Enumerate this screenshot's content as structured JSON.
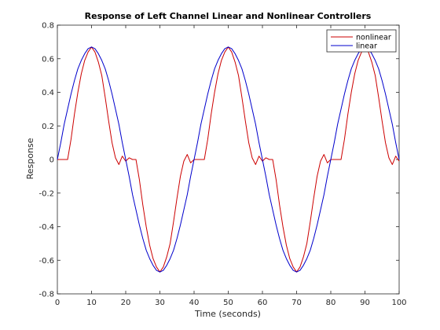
{
  "chart_data": {
    "type": "line",
    "title": "Response of Left Channel Linear and Nonlinear Controllers",
    "xlabel": "Time (seconds)",
    "ylabel": "Response",
    "xlim": [
      0,
      100
    ],
    "ylim": [
      -0.8,
      0.8
    ],
    "xticks": [
      0,
      10,
      20,
      30,
      40,
      50,
      60,
      70,
      80,
      90,
      100
    ],
    "yticks": [
      -0.8,
      -0.6,
      -0.4,
      -0.2,
      0,
      0.2,
      0.4,
      0.6,
      0.8
    ],
    "grid": false,
    "legend_position": "top-right",
    "series": [
      {
        "name": "nonlinear",
        "color": "#cc0000",
        "x": [
          0,
          3,
          4,
          5,
          6,
          7,
          8,
          9,
          10,
          11,
          12,
          13,
          14,
          15,
          16,
          17,
          18,
          19,
          20,
          21,
          22,
          23,
          24,
          25,
          26,
          27,
          28,
          29,
          30,
          31,
          32,
          33,
          34,
          35,
          36,
          37,
          38,
          39,
          40,
          43,
          44,
          45,
          46,
          47,
          48,
          49,
          50,
          51,
          52,
          53,
          54,
          55,
          56,
          57,
          58,
          59,
          60,
          61,
          62,
          63,
          64,
          65,
          66,
          67,
          68,
          69,
          70,
          71,
          72,
          73,
          74,
          75,
          76,
          77,
          78,
          79,
          80,
          83,
          84,
          85,
          86,
          87,
          88,
          89,
          90,
          91,
          92,
          93,
          94,
          95,
          96,
          97,
          98,
          99,
          100
        ],
        "y": [
          0,
          0,
          0.12,
          0.27,
          0.4,
          0.51,
          0.59,
          0.64,
          0.67,
          0.64,
          0.58,
          0.5,
          0.37,
          0.23,
          0.1,
          0.01,
          -0.03,
          0.02,
          -0.01,
          0.01,
          0,
          0,
          -0.12,
          -0.27,
          -0.4,
          -0.51,
          -0.59,
          -0.64,
          -0.67,
          -0.64,
          -0.58,
          -0.5,
          -0.37,
          -0.23,
          -0.1,
          -0.01,
          0.03,
          -0.02,
          0,
          0,
          0.12,
          0.27,
          0.4,
          0.51,
          0.59,
          0.64,
          0.67,
          0.64,
          0.58,
          0.5,
          0.37,
          0.23,
          0.1,
          0.01,
          -0.03,
          0.02,
          -0.01,
          0.01,
          0,
          0,
          -0.12,
          -0.27,
          -0.4,
          -0.51,
          -0.59,
          -0.64,
          -0.67,
          -0.64,
          -0.58,
          -0.5,
          -0.37,
          -0.23,
          -0.1,
          -0.01,
          0.03,
          -0.02,
          0,
          0,
          0.12,
          0.27,
          0.4,
          0.51,
          0.59,
          0.64,
          0.67,
          0.64,
          0.58,
          0.5,
          0.37,
          0.23,
          0.1,
          0.01,
          -0.03,
          0.02,
          -0.01
        ]
      },
      {
        "name": "linear",
        "color": "#0000cc",
        "x": [
          0,
          1,
          2,
          3,
          4,
          5,
          6,
          7,
          8,
          9,
          10,
          11,
          12,
          13,
          14,
          15,
          16,
          17,
          18,
          19,
          20,
          21,
          22,
          23,
          24,
          25,
          26,
          27,
          28,
          29,
          30,
          31,
          32,
          33,
          34,
          35,
          36,
          37,
          38,
          39,
          40,
          41,
          42,
          43,
          44,
          45,
          46,
          47,
          48,
          49,
          50,
          51,
          52,
          53,
          54,
          55,
          56,
          57,
          58,
          59,
          60,
          61,
          62,
          63,
          64,
          65,
          66,
          67,
          68,
          69,
          70,
          71,
          72,
          73,
          74,
          75,
          76,
          77,
          78,
          79,
          80,
          81,
          82,
          83,
          84,
          85,
          86,
          87,
          88,
          89,
          90,
          91,
          92,
          93,
          94,
          95,
          96,
          97,
          98,
          99,
          100
        ],
        "y": [
          0,
          0.1,
          0.21,
          0.3,
          0.39,
          0.47,
          0.54,
          0.59,
          0.63,
          0.66,
          0.67,
          0.66,
          0.63,
          0.59,
          0.54,
          0.47,
          0.39,
          0.3,
          0.21,
          0.1,
          0,
          -0.1,
          -0.21,
          -0.3,
          -0.39,
          -0.47,
          -0.54,
          -0.59,
          -0.63,
          -0.66,
          -0.67,
          -0.66,
          -0.63,
          -0.59,
          -0.54,
          -0.47,
          -0.39,
          -0.3,
          -0.21,
          -0.1,
          0,
          0.1,
          0.21,
          0.3,
          0.39,
          0.47,
          0.54,
          0.59,
          0.63,
          0.66,
          0.67,
          0.66,
          0.63,
          0.59,
          0.54,
          0.47,
          0.39,
          0.3,
          0.21,
          0.1,
          0,
          -0.1,
          -0.21,
          -0.3,
          -0.39,
          -0.47,
          -0.54,
          -0.59,
          -0.63,
          -0.66,
          -0.67,
          -0.66,
          -0.63,
          -0.59,
          -0.54,
          -0.47,
          -0.39,
          -0.3,
          -0.21,
          -0.1,
          0,
          0.1,
          0.21,
          0.3,
          0.39,
          0.47,
          0.54,
          0.59,
          0.63,
          0.66,
          0.67,
          0.66,
          0.63,
          0.59,
          0.54,
          0.47,
          0.39,
          0.3,
          0.21,
          0.1,
          0
        ]
      }
    ]
  }
}
